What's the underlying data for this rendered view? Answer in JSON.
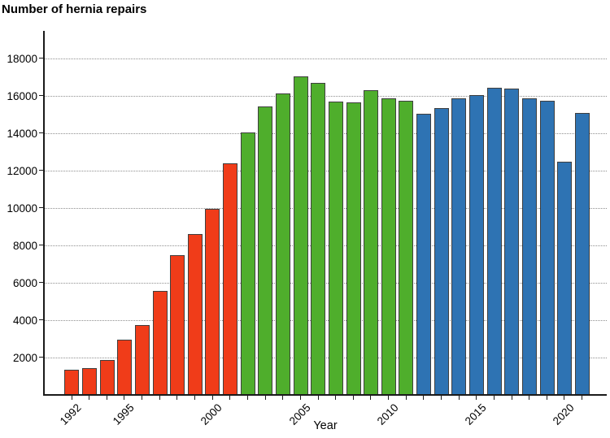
{
  "page": {
    "title": "Number of hernia repairs"
  },
  "chart_data": {
    "type": "bar",
    "title": "Number of hernia repairs",
    "xlabel": "Year",
    "ylabel": "",
    "categories": [
      1992,
      1993,
      1994,
      1995,
      1996,
      1997,
      1998,
      1999,
      2000,
      2001,
      2002,
      2003,
      2004,
      2005,
      2006,
      2007,
      2008,
      2009,
      2010,
      2011,
      2012,
      2013,
      2014,
      2015,
      2016,
      2017,
      2018,
      2019,
      2020,
      2021
    ],
    "values": [
      1350,
      1450,
      1850,
      2950,
      3750,
      5550,
      7500,
      8600,
      9950,
      12400,
      14050,
      15450,
      16150,
      17050,
      16700,
      15700,
      15650,
      16300,
      15850,
      15750,
      15050,
      15350,
      15850,
      16050,
      16450,
      16400,
      15850,
      15750,
      12500,
      15100
    ],
    "color_segments": [
      {
        "from": 1992,
        "to": 2001,
        "color": "#f03c19"
      },
      {
        "from": 2002,
        "to": 2011,
        "color": "#4fae2c"
      },
      {
        "from": 2012,
        "to": 2021,
        "color": "#2e73b3"
      }
    ],
    "ylim": [
      0,
      19400
    ],
    "yticks": [
      2000,
      4000,
      6000,
      8000,
      10000,
      12000,
      14000,
      16000,
      18000
    ],
    "labeled_xticks": [
      1992,
      1995,
      2000,
      2005,
      2010,
      2015,
      2020
    ],
    "grid": "horizontal-dotted",
    "legend_position": "none",
    "bar_border_color": "#3f3f3f",
    "grid_color": "#8f8f8f",
    "axis_color": "#1a1a1a",
    "background": "#ffffff"
  }
}
